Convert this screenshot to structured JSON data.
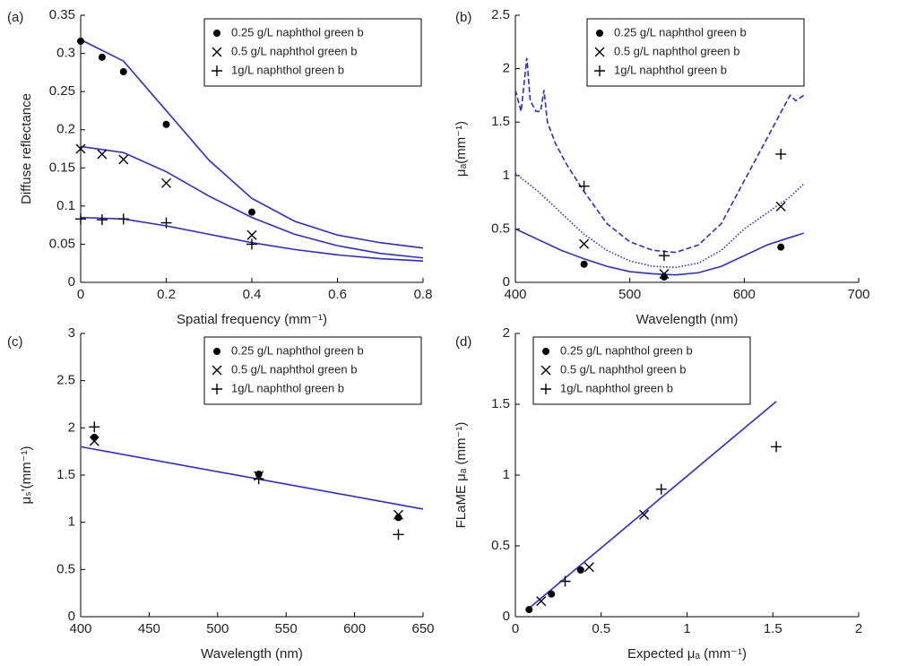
{
  "chart_data": [
    {
      "type": "scatter",
      "panel_label": "(a)",
      "xlabel": "Spatial frequency (mm⁻¹)",
      "ylabel": "Diffuse reflectance",
      "xlim": [
        0,
        0.8
      ],
      "xticks": [
        0,
        0.2,
        0.4,
        0.6,
        0.8
      ],
      "ylim": [
        0,
        0.35
      ],
      "yticks": [
        0,
        0.05,
        0.1,
        0.15,
        0.2,
        0.25,
        0.3,
        0.35
      ],
      "legend": "upper right",
      "series": [
        {
          "name": "0.25 g/L naphthol green b",
          "marker": "dot",
          "color": "#000000",
          "x": [
            0,
            0.05,
            0.1,
            0.2,
            0.4
          ],
          "values": [
            0.316,
            0.295,
            0.276,
            0.207,
            0.092
          ]
        },
        {
          "name": "0.5 g/L naphthol green b",
          "marker": "x",
          "color": "#000000",
          "x": [
            0,
            0.05,
            0.1,
            0.2,
            0.4
          ],
          "values": [
            0.175,
            0.168,
            0.161,
            0.13,
            0.062
          ]
        },
        {
          "name": "1g/L naphthol green b",
          "marker": "plus",
          "color": "#000000",
          "x": [
            0,
            0.05,
            0.1,
            0.2,
            0.4
          ],
          "values": [
            0.083,
            0.082,
            0.083,
            0.078,
            0.05
          ]
        }
      ],
      "lines": [
        {
          "color": "#2a2ae0",
          "style": "solid",
          "x": [
            0,
            0.1,
            0.2,
            0.3,
            0.4,
            0.5,
            0.6,
            0.7,
            0.8
          ],
          "values": [
            0.318,
            0.29,
            0.225,
            0.16,
            0.11,
            0.08,
            0.062,
            0.052,
            0.045
          ]
        },
        {
          "color": "#2a2ae0",
          "style": "solid",
          "x": [
            0,
            0.1,
            0.2,
            0.3,
            0.4,
            0.5,
            0.6,
            0.7,
            0.8
          ],
          "values": [
            0.178,
            0.17,
            0.145,
            0.113,
            0.085,
            0.063,
            0.048,
            0.038,
            0.032
          ]
        },
        {
          "color": "#2a2ae0",
          "style": "solid",
          "x": [
            0,
            0.1,
            0.2,
            0.3,
            0.4,
            0.5,
            0.6,
            0.7,
            0.8
          ],
          "values": [
            0.085,
            0.083,
            0.074,
            0.063,
            0.052,
            0.043,
            0.036,
            0.031,
            0.028
          ]
        }
      ]
    },
    {
      "type": "scatter",
      "panel_label": "(b)",
      "xlabel": "Wavelength (nm)",
      "ylabel": "μₐ(mm⁻¹)",
      "xlim": [
        400,
        700
      ],
      "xticks": [
        400,
        500,
        600,
        700
      ],
      "ylim": [
        0,
        2.5
      ],
      "yticks": [
        0,
        0.5,
        1,
        1.5,
        2,
        2.5
      ],
      "legend": "upper center",
      "series": [
        {
          "name": "0.25 g/L naphthol green b",
          "marker": "dot",
          "color": "#000000",
          "x": [
            460,
            530,
            632
          ],
          "values": [
            0.17,
            0.05,
            0.33
          ]
        },
        {
          "name": "0.5 g/L naphthol green b",
          "marker": "x",
          "color": "#000000",
          "x": [
            460,
            530,
            632
          ],
          "values": [
            0.36,
            0.08,
            0.71
          ]
        },
        {
          "name": "1g/L naphthol green b",
          "marker": "plus",
          "color": "#000000",
          "x": [
            460,
            530,
            632
          ],
          "values": [
            0.9,
            0.25,
            1.2
          ]
        }
      ],
      "lines": [
        {
          "color": "#2a2ae0",
          "style": "solid",
          "x": [
            400,
            420,
            440,
            460,
            480,
            500,
            520,
            540,
            560,
            580,
            600,
            620,
            640,
            652
          ],
          "values": [
            0.5,
            0.4,
            0.3,
            0.22,
            0.15,
            0.1,
            0.08,
            0.07,
            0.09,
            0.15,
            0.25,
            0.35,
            0.42,
            0.46
          ]
        },
        {
          "color": "#2a2ae0",
          "style": "dotted",
          "x": [
            400,
            420,
            440,
            460,
            480,
            500,
            520,
            540,
            560,
            580,
            600,
            620,
            640,
            652
          ],
          "values": [
            1.02,
            0.85,
            0.65,
            0.45,
            0.3,
            0.2,
            0.15,
            0.14,
            0.18,
            0.3,
            0.5,
            0.65,
            0.8,
            0.92
          ]
        },
        {
          "color": "#2a2ae0",
          "style": "dashed",
          "x": [
            400,
            405,
            408,
            410,
            413,
            418,
            422,
            425,
            428,
            435,
            445,
            460,
            480,
            500,
            520,
            540,
            560,
            580,
            600,
            620,
            635,
            640,
            645,
            652
          ],
          "values": [
            1.8,
            1.6,
            1.9,
            2.1,
            1.7,
            1.6,
            1.6,
            1.8,
            1.5,
            1.3,
            1.1,
            0.85,
            0.55,
            0.38,
            0.3,
            0.28,
            0.35,
            0.55,
            0.95,
            1.35,
            1.65,
            1.75,
            1.7,
            1.75
          ]
        }
      ]
    },
    {
      "type": "scatter",
      "panel_label": "(c)",
      "xlabel": "Wavelength (nm)",
      "ylabel": "μₛ'(mm⁻¹)",
      "xlim": [
        400,
        650
      ],
      "xticks": [
        400,
        450,
        500,
        550,
        600,
        650
      ],
      "ylim": [
        0,
        3
      ],
      "yticks": [
        0,
        0.5,
        1,
        1.5,
        2,
        2.5,
        3
      ],
      "legend": "upper right",
      "series": [
        {
          "name": "0.25 g/L naphthol green b",
          "marker": "dot",
          "color": "#000000",
          "x": [
            410,
            530,
            632
          ],
          "values": [
            1.9,
            1.51,
            1.05
          ]
        },
        {
          "name": "0.5 g/L naphthol green b",
          "marker": "x",
          "color": "#000000",
          "x": [
            410,
            530,
            632
          ],
          "values": [
            1.86,
            1.49,
            1.08
          ]
        },
        {
          "name": "1g/L naphthol green b",
          "marker": "plus",
          "color": "#000000",
          "x": [
            410,
            530,
            632
          ],
          "values": [
            2.01,
            1.46,
            0.87
          ]
        }
      ],
      "lines": [
        {
          "color": "#2a2ae0",
          "style": "solid",
          "x": [
            400,
            650
          ],
          "values": [
            1.8,
            1.14
          ]
        }
      ]
    },
    {
      "type": "scatter",
      "panel_label": "(d)",
      "xlabel": "Expected μₐ (mm⁻¹)",
      "ylabel": "FLaME μₐ (mm⁻¹)",
      "xlim": [
        0,
        2
      ],
      "xticks": [
        0,
        0.5,
        1,
        1.5,
        2
      ],
      "ylim": [
        0,
        2
      ],
      "yticks": [
        0,
        0.5,
        1,
        1.5,
        2
      ],
      "legend": "upper left",
      "series": [
        {
          "name": "0.25 g/L naphthol green b",
          "marker": "dot",
          "color": "#000000",
          "x": [
            0.08,
            0.21,
            0.38
          ],
          "values": [
            0.05,
            0.16,
            0.33
          ]
        },
        {
          "name": "0.5 g/L naphthol green b",
          "marker": "x",
          "color": "#000000",
          "x": [
            0.15,
            0.43,
            0.75
          ],
          "values": [
            0.11,
            0.35,
            0.72
          ]
        },
        {
          "name": "1g/L naphthol green b",
          "marker": "plus",
          "color": "#000000",
          "x": [
            0.29,
            0.85,
            1.52
          ],
          "values": [
            0.25,
            0.9,
            1.2
          ]
        }
      ],
      "lines": [
        {
          "color": "#2a2ae0",
          "style": "solid",
          "x": [
            0.07,
            1.52
          ],
          "values": [
            0.05,
            1.52
          ]
        }
      ]
    }
  ]
}
